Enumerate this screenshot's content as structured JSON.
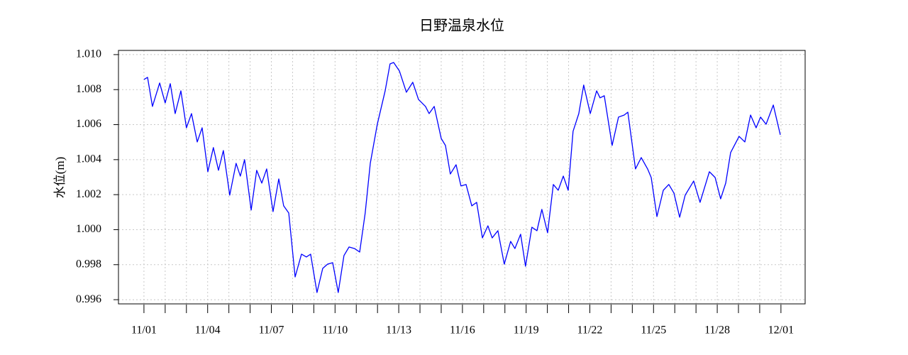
{
  "chart_data": {
    "type": "line",
    "title": "日野温泉水位",
    "ylabel": "水位(m)",
    "color": "#0000ff",
    "grid": true,
    "xlim": [
      -1.2,
      31.14
    ],
    "ylim": [
      0.99576,
      1.01024
    ],
    "xticks": [
      {
        "value": 0,
        "label": "11/01"
      },
      {
        "value": 3,
        "label": "11/04"
      },
      {
        "value": 6,
        "label": "11/07"
      },
      {
        "value": 9,
        "label": "11/10"
      },
      {
        "value": 12,
        "label": "11/13"
      },
      {
        "value": 15,
        "label": "11/16"
      },
      {
        "value": 18,
        "label": "11/19"
      },
      {
        "value": 21,
        "label": "11/22"
      },
      {
        "value": 24,
        "label": "11/25"
      },
      {
        "value": 27,
        "label": "11/28"
      },
      {
        "value": 30,
        "label": "12/01"
      }
    ],
    "xminor_ticks": [
      1,
      2,
      4,
      5,
      7,
      8,
      10,
      11,
      13,
      14,
      16,
      17,
      19,
      20,
      22,
      23,
      25,
      26,
      28,
      29
    ],
    "yticks": [
      {
        "value": 0.996,
        "label": "0.996"
      },
      {
        "value": 0.998,
        "label": "0.998"
      },
      {
        "value": 1.0,
        "label": "1.000"
      },
      {
        "value": 1.002,
        "label": "1.002"
      },
      {
        "value": 1.004,
        "label": "1.004"
      },
      {
        "value": 1.006,
        "label": "1.006"
      },
      {
        "value": 1.008,
        "label": "1.008"
      },
      {
        "value": 1.01,
        "label": "1.010"
      }
    ],
    "x": [
      0,
      0.17,
      0.4,
      0.74,
      1.0,
      1.24,
      1.47,
      1.74,
      2.0,
      2.24,
      2.51,
      2.74,
      3.01,
      3.27,
      3.51,
      3.74,
      4.04,
      4.34,
      4.54,
      4.74,
      5.05,
      5.31,
      5.55,
      5.78,
      6.08,
      6.35,
      6.58,
      6.82,
      7.12,
      7.42,
      7.65,
      7.85,
      8.15,
      8.42,
      8.65,
      8.89,
      9.15,
      9.42,
      9.66,
      9.92,
      10.16,
      10.42,
      10.66,
      10.99,
      11.36,
      11.59,
      11.76,
      12.03,
      12.36,
      12.66,
      12.93,
      13.26,
      13.43,
      13.67,
      14.0,
      14.2,
      14.43,
      14.7,
      14.93,
      15.17,
      15.44,
      15.67,
      15.94,
      16.2,
      16.4,
      16.67,
      16.97,
      17.27,
      17.47,
      17.74,
      17.97,
      18.27,
      18.51,
      18.74,
      19.01,
      19.28,
      19.51,
      19.75,
      19.98,
      20.21,
      20.48,
      20.71,
      21.02,
      21.32,
      21.48,
      21.68,
      22.05,
      22.35,
      22.62,
      22.79,
      23.15,
      23.42,
      23.72,
      23.89,
      24.16,
      24.46,
      24.72,
      24.96,
      25.23,
      25.49,
      25.89,
      26.19,
      26.63,
      26.9,
      27.16,
      27.4,
      27.63,
      28.03,
      28.3,
      28.57,
      28.83,
      29.04,
      29.3,
      29.64,
      29.97
    ],
    "values": [
      1.00858,
      1.0087,
      1.00704,
      1.00838,
      1.00724,
      1.00834,
      1.00663,
      1.00793,
      1.00582,
      1.00663,
      1.00501,
      1.00582,
      1.00331,
      1.00469,
      1.00339,
      1.00452,
      1.00197,
      1.00379,
      1.00306,
      1.004,
      1.00112,
      1.00339,
      1.00266,
      1.00347,
      1.00103,
      1.0029,
      1.00136,
      1.00095,
      0.9973,
      0.9986,
      0.99844,
      0.9986,
      0.99641,
      0.99779,
      0.99803,
      0.99811,
      0.99641,
      0.99852,
      0.99901,
      0.99892,
      0.99872,
      1.00095,
      1.00379,
      1.00602,
      1.00793,
      1.00947,
      1.00955,
      1.00907,
      1.00785,
      1.00842,
      1.00744,
      1.00704,
      1.00663,
      1.00704,
      1.00521,
      1.00481,
      1.00318,
      1.00371,
      1.0025,
      1.00258,
      1.00136,
      1.00156,
      0.99953,
      1.00022,
      0.99953,
      0.99994,
      0.99803,
      0.99933,
      0.99892,
      0.99974,
      0.99791,
      1.00014,
      0.99994,
      1.00116,
      0.99982,
      1.00258,
      1.00225,
      1.00306,
      1.00225,
      1.00562,
      1.00663,
      1.00826,
      1.00663,
      1.00793,
      1.00753,
      1.00765,
      1.00481,
      1.00643,
      1.00655,
      1.00671,
      1.00347,
      1.00412,
      1.00347,
      1.00298,
      1.00075,
      1.00225,
      1.00258,
      1.00209,
      1.00071,
      1.00197,
      1.00278,
      1.00156,
      1.00331,
      1.00298,
      1.00176,
      1.00266,
      1.0044,
      1.00533,
      1.00501,
      1.00655,
      1.00582,
      1.00643,
      1.00602,
      1.00712,
      1.00542
    ]
  }
}
